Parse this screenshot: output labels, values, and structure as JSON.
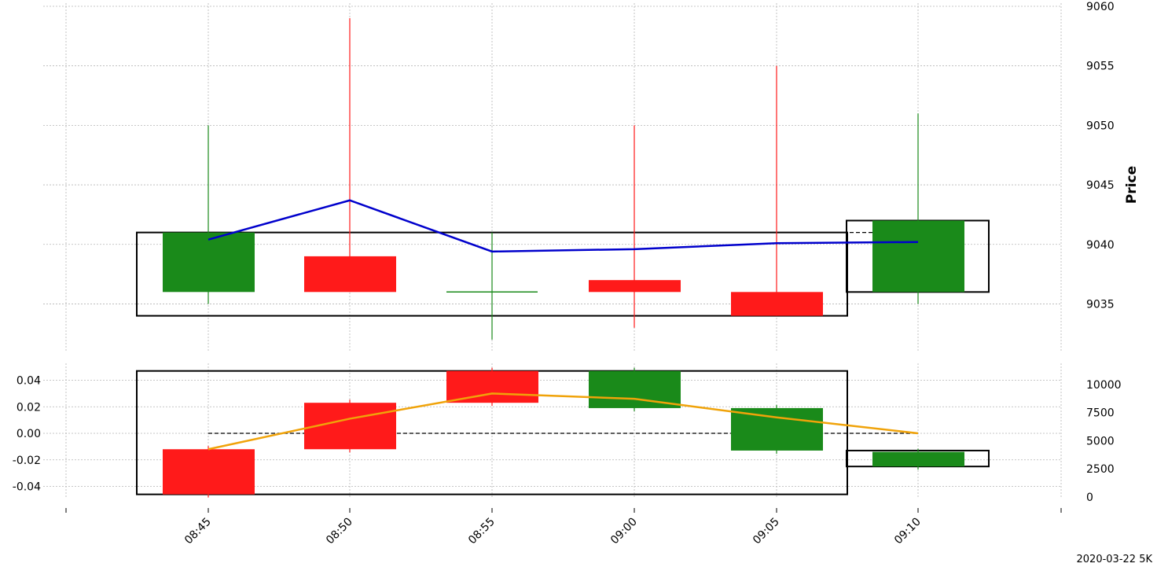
{
  "chart_data": {
    "type": "candlestick",
    "footer": "2020-03-22 5K",
    "x_ticks": [
      "08:45",
      "08:50",
      "08:55",
      "09:00",
      "09:05",
      "09:10"
    ],
    "price_panel": {
      "ylabel": "Price",
      "ylim": [
        9031,
        9060
      ],
      "y_ticks": [
        9035,
        9040,
        9045,
        9050,
        9055,
        9060
      ],
      "candles": [
        {
          "time": "08:45",
          "open": 9036,
          "high": 9050,
          "low": 9035,
          "close": 9041,
          "color": "#1a8a1a"
        },
        {
          "time": "08:50",
          "open": 9039,
          "high": 9059,
          "low": 9036,
          "close": 9036,
          "color": "#ff1a1a"
        },
        {
          "time": "08:55",
          "open": 9036,
          "high": 9041,
          "low": 9032,
          "close": 9036,
          "color": "#1a8a1a"
        },
        {
          "time": "09:00",
          "open": 9037,
          "high": 9050,
          "low": 9033,
          "close": 9036,
          "color": "#ff1a1a"
        },
        {
          "time": "09:05",
          "open": 9036,
          "high": 9055,
          "low": 9034,
          "close": 9034,
          "color": "#ff1a1a"
        },
        {
          "time": "09:10",
          "open": 9036,
          "high": 9051,
          "low": 9035,
          "close": 9042,
          "color": "#1a8a1a"
        }
      ],
      "avg_line": {
        "color": "#0000cc",
        "values": [
          9040.4,
          9043.7,
          9039.4,
          9039.6,
          9040.1,
          9040.2
        ]
      },
      "reference_line": 9041,
      "boxes": [
        {
          "from": 0,
          "to": 4,
          "low": 9034,
          "high": 9041
        },
        {
          "from": 5,
          "to": 5,
          "low": 9036,
          "high": 9042
        }
      ]
    },
    "volume_panel": {
      "left_ylim": [
        -0.048,
        0.048
      ],
      "left_ticks": [
        "0.04",
        "0.02",
        "0.00",
        "-0.02",
        "-0.04"
      ],
      "left_tick_values": [
        0.04,
        0.02,
        0.0,
        -0.02,
        -0.04
      ],
      "right_ylim": [
        0,
        11000
      ],
      "right_ticks": [
        "10000",
        "7500",
        "5000",
        "2500",
        "0"
      ],
      "right_tick_values": [
        10000,
        7500,
        5000,
        2500,
        0
      ],
      "bars": [
        {
          "time": "08:45",
          "top": -0.012,
          "bottom": -0.046,
          "color": "#ff1a1a"
        },
        {
          "time": "08:50",
          "top": 0.023,
          "bottom": -0.012,
          "color": "#ff1a1a"
        },
        {
          "time": "08:55",
          "top": 0.047,
          "bottom": 0.023,
          "color": "#ff1a1a"
        },
        {
          "time": "09:00",
          "top": 0.047,
          "bottom": 0.019,
          "color": "#1a8a1a"
        },
        {
          "time": "09:05",
          "top": 0.019,
          "bottom": -0.013,
          "color": "#1a8a1a"
        },
        {
          "time": "09:10",
          "top": -0.014,
          "bottom": -0.025,
          "color": "#1a8a1a"
        }
      ],
      "line": {
        "color": "#f0a30a",
        "values": [
          -0.012,
          0.011,
          0.03,
          0.026,
          0.012,
          0.0
        ]
      },
      "reference_line": 0.0,
      "boxes": [
        {
          "from": 0,
          "to": 4,
          "low": -0.046,
          "high": 0.047
        },
        {
          "from": 5,
          "to": 5,
          "low": -0.025,
          "high": -0.013
        }
      ]
    }
  }
}
